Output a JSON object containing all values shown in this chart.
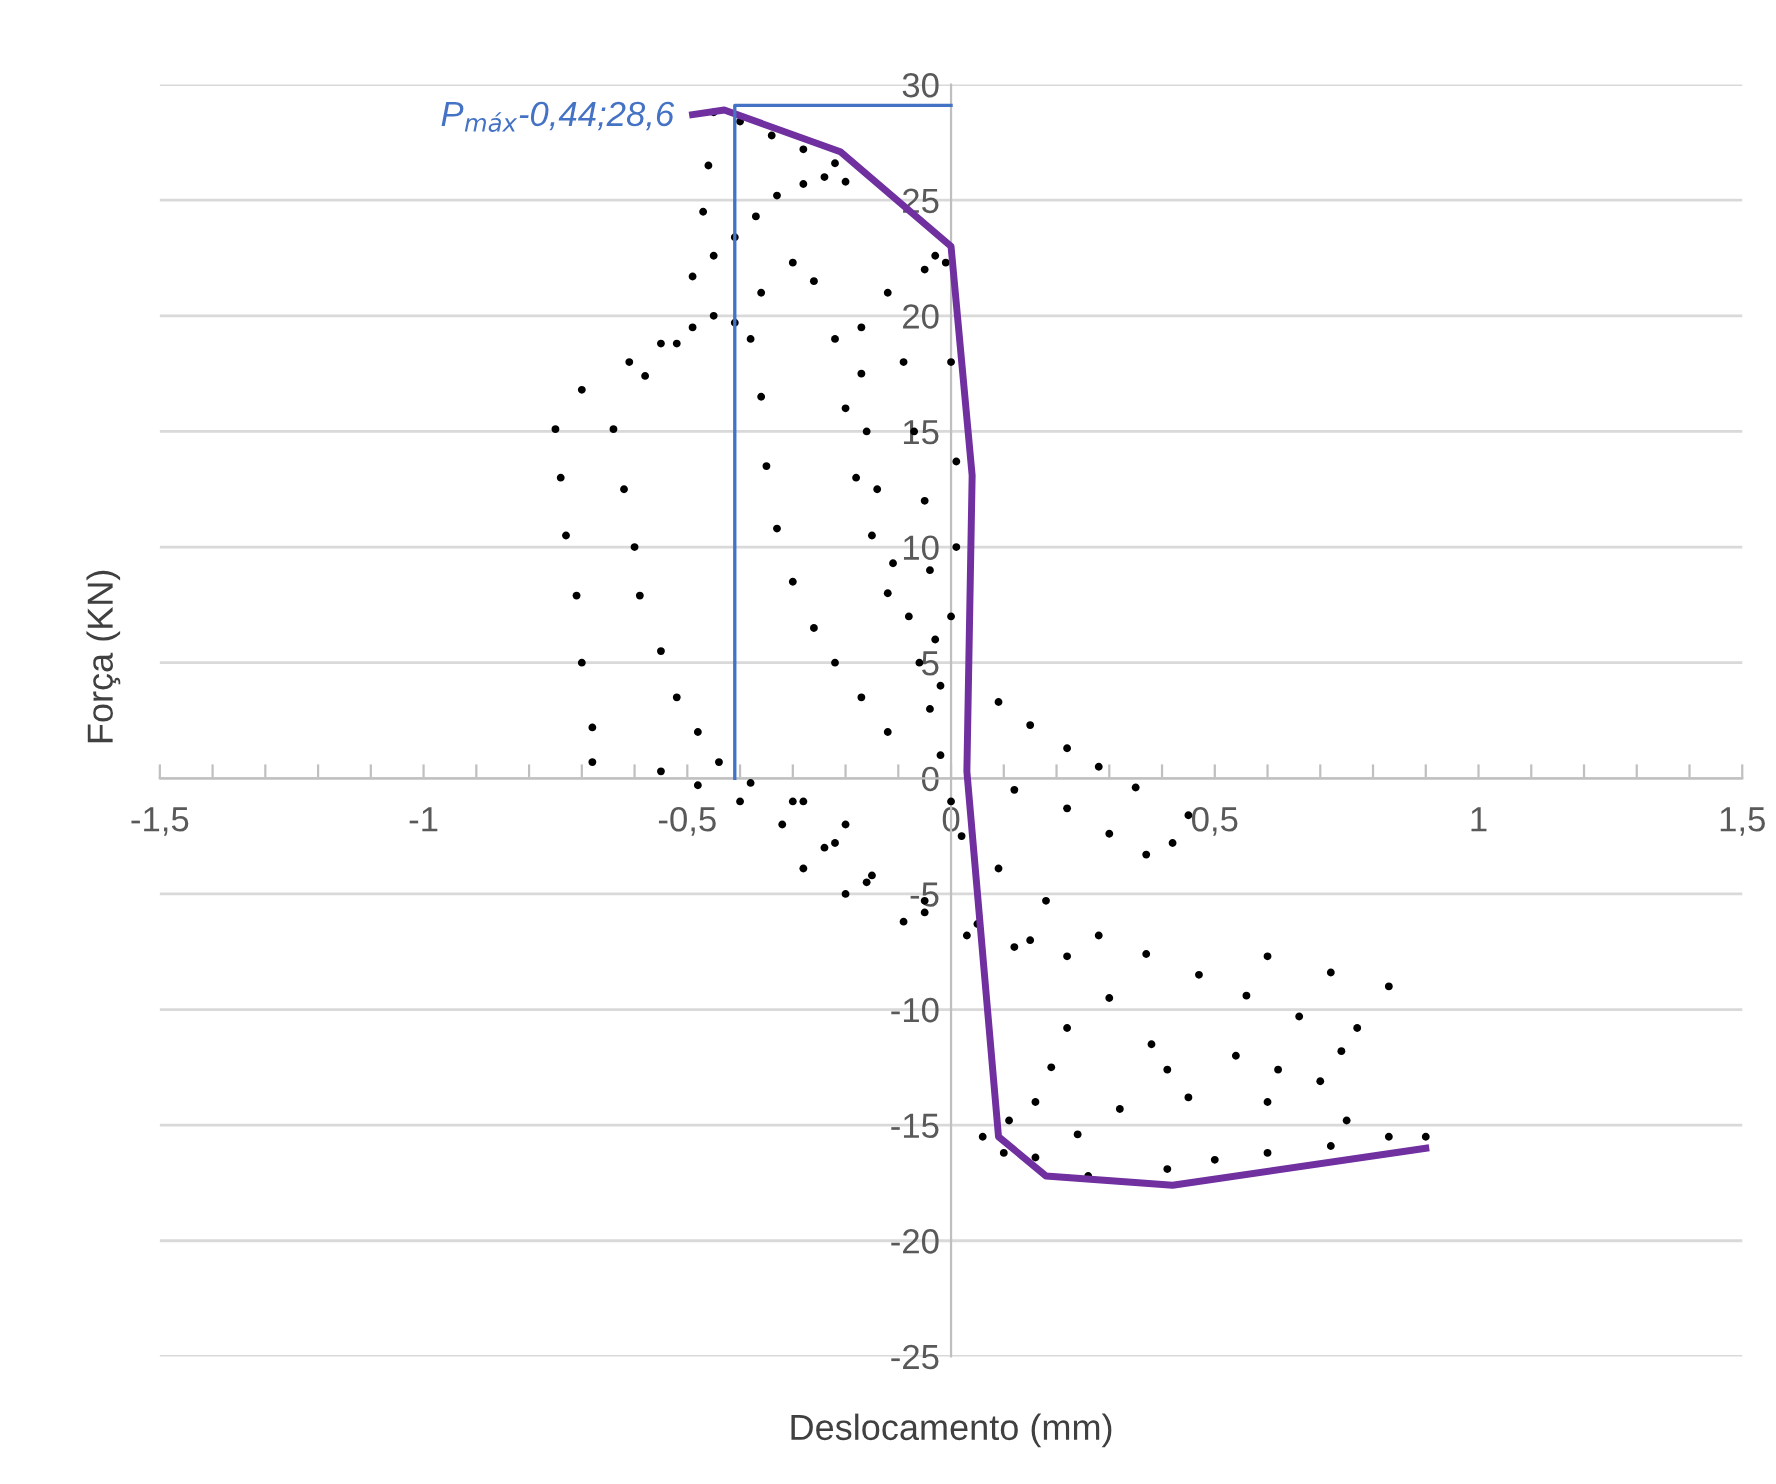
{
  "chart_data": {
    "type": "scatter",
    "xlabel": "Deslocamento (mm)",
    "ylabel": "Força (KN)",
    "xlim": [
      -1.5,
      1.5
    ],
    "ylim": [
      -25,
      30
    ],
    "xticks": [
      {
        "value": -1.5,
        "label": "-1,5"
      },
      {
        "value": -1.4,
        "label": null
      },
      {
        "value": -1.3,
        "label": null
      },
      {
        "value": -1.2,
        "label": null
      },
      {
        "value": -1.1,
        "label": null
      },
      {
        "value": -1,
        "label": "-1"
      },
      {
        "value": -0.9,
        "label": null
      },
      {
        "value": -0.8,
        "label": null
      },
      {
        "value": -0.7,
        "label": null
      },
      {
        "value": -0.6,
        "label": null
      },
      {
        "value": -0.5,
        "label": "-0,5"
      },
      {
        "value": -0.4,
        "label": null
      },
      {
        "value": -0.3,
        "label": null
      },
      {
        "value": -0.2,
        "label": null
      },
      {
        "value": -0.1,
        "label": null
      },
      {
        "value": 0,
        "label": "0"
      },
      {
        "value": 0.1,
        "label": null
      },
      {
        "value": 0.2,
        "label": null
      },
      {
        "value": 0.3,
        "label": null
      },
      {
        "value": 0.4,
        "label": null
      },
      {
        "value": 0.5,
        "label": "0,5"
      },
      {
        "value": 0.6,
        "label": null
      },
      {
        "value": 0.7,
        "label": null
      },
      {
        "value": 0.8,
        "label": null
      },
      {
        "value": 0.9,
        "label": null
      },
      {
        "value": 1,
        "label": "1"
      },
      {
        "value": 1.1,
        "label": null
      },
      {
        "value": 1.2,
        "label": null
      },
      {
        "value": 1.3,
        "label": null
      },
      {
        "value": 1.4,
        "label": null
      },
      {
        "value": 1.5,
        "label": "1,5"
      }
    ],
    "yticks": [
      -25,
      -20,
      -15,
      -10,
      -5,
      0,
      5,
      10,
      15,
      20,
      25,
      30
    ],
    "grid": "y",
    "marker": "circle",
    "annotations": [
      {
        "text": "P$_{máx}$-0,44;28,6",
        "x": -0.44,
        "y": 28.6
      }
    ],
    "series": [
      {
        "color": "#000000",
        "x": [
          -0.68,
          -0.68,
          -0.7,
          -0.71,
          -0.73,
          -0.74,
          -0.75,
          -0.7,
          -0.61,
          -0.55,
          -0.49,
          -0.41,
          -0.55,
          -0.48,
          -0.4,
          -0.32,
          -0.24,
          -0.15,
          -0.05,
          0.05,
          0.15,
          -0.64,
          -0.62,
          -0.6,
          -0.59,
          -0.55,
          -0.52,
          -0.48,
          -0.44,
          -0.38,
          -0.3,
          -0.2,
          -0.58,
          -0.52,
          -0.45,
          -0.49,
          -0.45,
          -0.41,
          -0.37,
          -0.33,
          -0.28,
          -0.24,
          -0.46,
          -0.47,
          -0.45,
          -0.4,
          -0.34,
          -0.28,
          -0.22,
          -0.2,
          -0.3,
          -0.36,
          -0.38,
          -0.36,
          -0.35,
          -0.33,
          -0.3,
          -0.26,
          -0.22,
          -0.17,
          -0.12,
          -0.26,
          -0.22,
          -0.2,
          -0.18,
          -0.15,
          -0.12,
          -0.03,
          -0.05,
          -0.12,
          -0.17,
          -0.17,
          -0.16,
          -0.14,
          -0.11,
          -0.08,
          -0.06,
          -0.04,
          -0.02,
          0.0,
          -0.01,
          0.0,
          0.01,
          0.01,
          0.0,
          -0.02,
          -0.07,
          -0.05,
          -0.04,
          -0.03,
          -0.09,
          0.02,
          0.09,
          0.15,
          0.22,
          0.28,
          0.35,
          0.45,
          0.42,
          0.37,
          0.3,
          0.22,
          0.12,
          0.09,
          0.18,
          0.28,
          0.37,
          0.47,
          0.56,
          0.66,
          0.77,
          0.6,
          0.72,
          0.83,
          0.74,
          0.7,
          0.62,
          0.54,
          0.22,
          0.19,
          0.16,
          0.11,
          0.06,
          0.1,
          0.16,
          0.24,
          0.32,
          0.45,
          0.38,
          0.3,
          0.26,
          0.41,
          0.5,
          0.6,
          0.72,
          0.83,
          0.9,
          0.6,
          0.75,
          0.41,
          -0.28,
          -0.22,
          -0.16,
          -0.05,
          0.03,
          0.12,
          0.22,
          -0.28,
          -0.2,
          -0.09
        ],
        "values": [
          0.7,
          2.2,
          5.0,
          7.9,
          10.5,
          13,
          15.1,
          16.8,
          18,
          18.8,
          19.5,
          19.7,
          0.3,
          -0.3,
          -1.0,
          -2.0,
          -3.0,
          -4.2,
          -5.3,
          -6.3,
          -7.0,
          15.1,
          12.5,
          10,
          7.9,
          5.5,
          3.5,
          2.0,
          0.7,
          -0.2,
          -1.0,
          -2.0,
          17.4,
          18.8,
          20.0,
          21.7,
          22.6,
          23.4,
          24.3,
          25.2,
          25.7,
          26.0,
          26.5,
          24.5,
          28.8,
          28.4,
          27.8,
          27.2,
          26.6,
          25.8,
          22.3,
          21.0,
          19.0,
          16.5,
          13.5,
          10.8,
          8.5,
          6.5,
          5.0,
          3.5,
          2.0,
          21.5,
          19,
          16,
          13,
          10.5,
          8,
          22.6,
          22,
          21,
          19.5,
          17.5,
          15,
          12.5,
          9.3,
          7,
          5,
          3,
          1,
          -1,
          22.3,
          18,
          13.7,
          10,
          7,
          4,
          15,
          12,
          9,
          6,
          18,
          -2.5,
          3.3,
          2.3,
          1.3,
          0.5,
          -0.4,
          -1.6,
          -2.8,
          -3.3,
          -2.4,
          -1.3,
          -0.5,
          -3.9,
          -5.3,
          -6.8,
          -7.6,
          -8.5,
          -9.4,
          -10.3,
          -10.8,
          -7.7,
          -8.4,
          -9.0,
          -11.8,
          -13.1,
          -12.6,
          -12.0,
          -10.8,
          -12.5,
          -14,
          -14.8,
          -15.5,
          -16.2,
          -16.4,
          -15.4,
          -14.3,
          -13.8,
          -11.5,
          -9.5,
          -17.2,
          -16.9,
          -16.5,
          -16.2,
          -15.9,
          -15.5,
          -15.5,
          -14,
          -14.8,
          -12.6,
          -1,
          -2.8,
          -4.5,
          -5.8,
          -6.8,
          -7.3,
          -7.7,
          -3.9,
          -5.0,
          -6.2
        ]
      },
      {
        "type": "line",
        "color": "#7030a0",
        "marker": "none",
        "x": [
          -0.49,
          -0.43,
          -0.21,
          0.0,
          0.04,
          0.03,
          0.09,
          0.18,
          0.42,
          0.9
        ],
        "values": [
          28.7,
          28.9,
          27.1,
          23.0,
          13.1,
          0.3,
          -15.5,
          -17.2,
          -17.6,
          -16.0
        ]
      },
      {
        "type": "line",
        "color": "#4472c4",
        "marker": "none",
        "x": [
          -0.41,
          -0.41,
          0.0
        ],
        "values": [
          0,
          29.1,
          29.1
        ]
      }
    ]
  }
}
